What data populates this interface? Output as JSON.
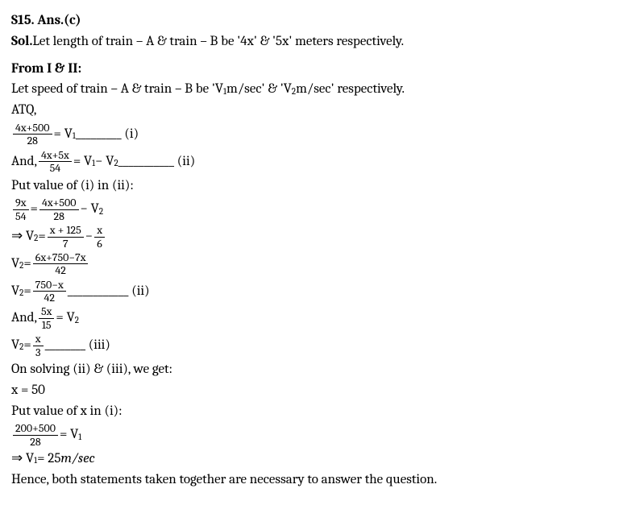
{
  "header": {
    "qnum": "S15. Ans.(c)",
    "sol_label": "Sol.",
    "sol_text": " Let length of train – A & train – B be '4x' & '5x' meters respectively."
  },
  "section_label": "From I & II:",
  "let_speed": "Let speed of train – A & train – B be 'V",
  "let_speed_mid": " m/sec' & 'V",
  "let_speed_end": " m/sec' respectively.",
  "atq": "ATQ,",
  "eq1": {
    "num": "4x+500",
    "den": "28",
    "rhs": " = V",
    "blank": " _________ (i)"
  },
  "eq2": {
    "prefix": "And, ",
    "num": "4x+5x",
    "den": "54",
    "mid": " = V",
    "minus": " − V",
    "blank": " ___________ (ii)"
  },
  "put1": "Put value of (i) in (ii):",
  "eq3": {
    "l_num": "9x",
    "l_den": "54",
    "eq": " = ",
    "r_num": "4x+500",
    "r_den": "28",
    "minus": " − V"
  },
  "eq4": {
    "pre": "⇒ V",
    "eq": " = ",
    "a_num": "x + 125",
    "a_den": "7",
    "minus": " − ",
    "b_num": "x",
    "b_den": "6"
  },
  "eq5": {
    "pre": "V",
    "eq": " = ",
    "num": "6x+750−7x",
    "den": "42"
  },
  "eq6": {
    "pre": "V",
    "eq": " = ",
    "num": "750−x",
    "den": "42",
    "blank": " ____________ (ii)"
  },
  "eq7": {
    "pre": "And, ",
    "num": "5x",
    "den": "15",
    "rhs": " = V"
  },
  "eq8": {
    "pre": "V",
    "eq": " = ",
    "num": "x",
    "den": "3",
    "blank": " ________ (iii)"
  },
  "solve": "On solving (ii) & (iii), we get:",
  "x50": "x = 50",
  "putx": "Put value of x in (i):",
  "eq9": {
    "num": "200+500",
    "den": "28",
    "rhs": " = V"
  },
  "eq10": {
    "pre": "⇒ V",
    "rest": " = 25 ",
    "unit": "m/sec"
  },
  "conclusion": "Hence, both statements taken together are necessary to answer the question.",
  "subs": {
    "one": "1",
    "two": "2"
  }
}
